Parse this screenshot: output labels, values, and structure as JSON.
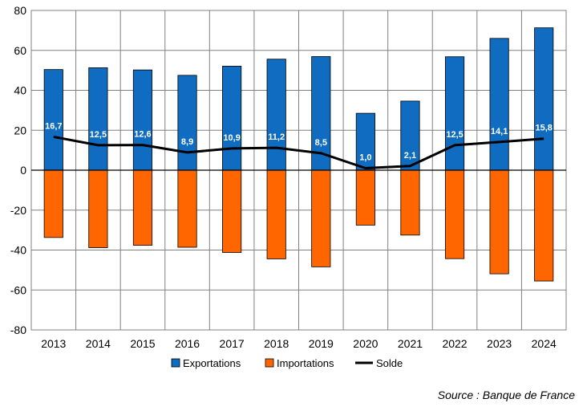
{
  "chart_data": {
    "type": "bar",
    "categories": [
      "2013",
      "2014",
      "2015",
      "2016",
      "2017",
      "2018",
      "2019",
      "2020",
      "2021",
      "2022",
      "2023",
      "2024"
    ],
    "series": [
      {
        "name": "Exportations",
        "type": "bar",
        "color": "#0F6CC0",
        "values": [
          50.4,
          51.3,
          50.2,
          47.5,
          52.1,
          55.6,
          56.9,
          28.5,
          34.6,
          56.8,
          66.0,
          71.3
        ]
      },
      {
        "name": "Importations",
        "type": "bar",
        "color": "#FF6600",
        "values": [
          -33.7,
          -38.8,
          -37.6,
          -38.6,
          -41.2,
          -44.4,
          -48.4,
          -27.5,
          -32.5,
          -44.3,
          -51.9,
          -55.5
        ]
      },
      {
        "name": "Solde",
        "type": "line",
        "color": "#000000",
        "values": [
          16.7,
          12.5,
          12.6,
          8.9,
          10.9,
          11.2,
          8.5,
          1.0,
          2.1,
          12.5,
          14.1,
          15.8
        ],
        "labels": [
          "16,7",
          "12,5",
          "12,6",
          "8,9",
          "10,9",
          "11,2",
          "8,5",
          "1,0",
          "2,1",
          "12,5",
          "14,1",
          "15,8"
        ]
      }
    ],
    "ylim": [
      -80,
      80
    ],
    "yticks": [
      80,
      60,
      40,
      20,
      0,
      -20,
      -40,
      -60,
      -80
    ],
    "grid": true,
    "legend_position": "bottom"
  },
  "source": "Source : Banque de France"
}
